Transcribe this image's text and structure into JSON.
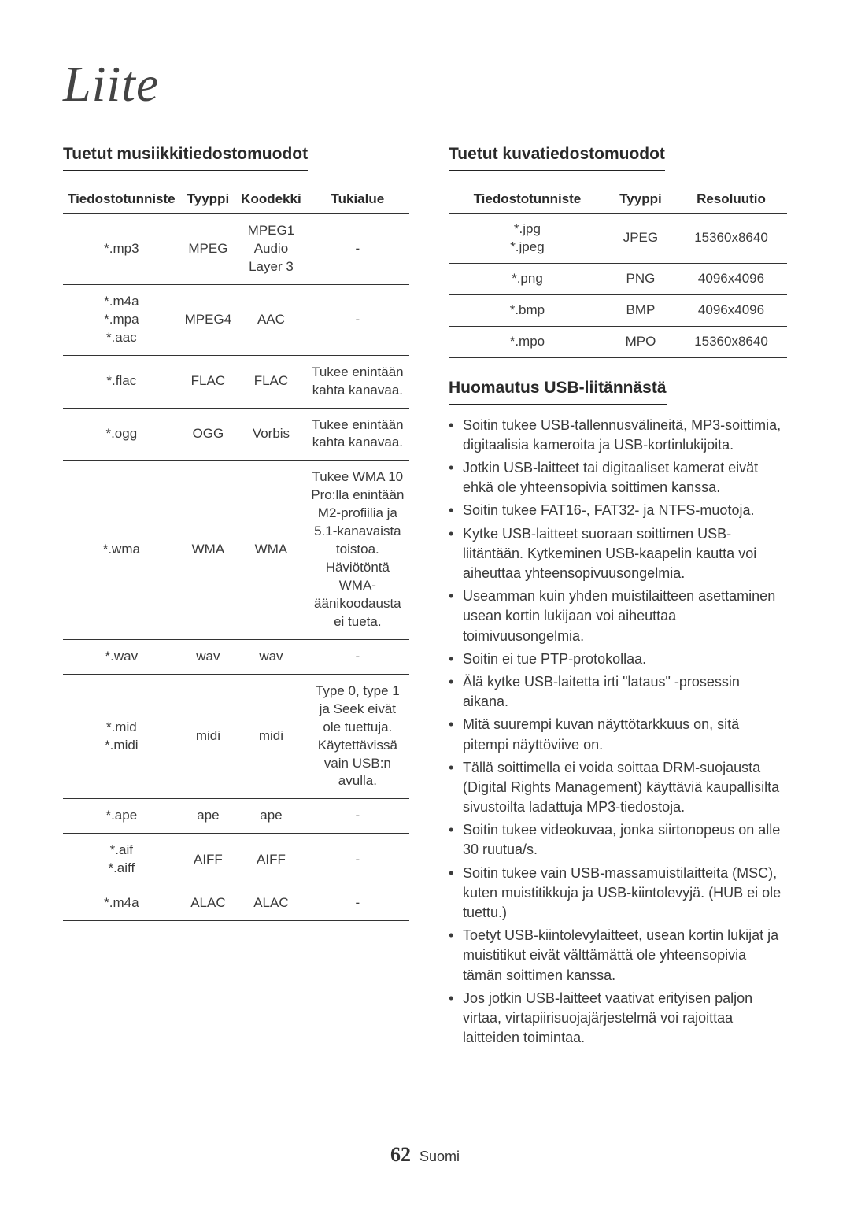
{
  "page_title": "Liite",
  "left": {
    "heading": "Tuetut musiikkitiedostomuodot",
    "columns": [
      "Tiedostotunniste",
      "Tyyppi",
      "Koodekki",
      "Tukialue"
    ],
    "rows": [
      [
        "*.mp3",
        "MPEG",
        "MPEG1 Audio Layer 3",
        "-"
      ],
      [
        "*.m4a\n*.mpa\n*.aac",
        "MPEG4",
        "AAC",
        "-"
      ],
      [
        "*.flac",
        "FLAC",
        "FLAC",
        "Tukee enintään kahta kanavaa."
      ],
      [
        "*.ogg",
        "OGG",
        "Vorbis",
        "Tukee enintään kahta kanavaa."
      ],
      [
        "*.wma",
        "WMA",
        "WMA",
        "Tukee WMA 10 Pro:lla enintään M2-profiilia ja 5.1-kanavaista toistoa. Häviötöntä WMA-äänikoodausta ei tueta."
      ],
      [
        "*.wav",
        "wav",
        "wav",
        "-"
      ],
      [
        "*.mid\n*.midi",
        "midi",
        "midi",
        "Type 0, type 1 ja Seek eivät ole tuettuja. Käytettävissä vain USB:n avulla."
      ],
      [
        "*.ape",
        "ape",
        "ape",
        "-"
      ],
      [
        "*.aif\n*.aiff",
        "AIFF",
        "AIFF",
        "-"
      ],
      [
        "*.m4a",
        "ALAC",
        "ALAC",
        "-"
      ]
    ]
  },
  "right": {
    "heading": "Tuetut kuvatiedostomuodot",
    "columns": [
      "Tiedostotunniste",
      "Tyyppi",
      "Resoluutio"
    ],
    "rows": [
      [
        "*.jpg\n*.jpeg",
        "JPEG",
        "15360x8640"
      ],
      [
        "*.png",
        "PNG",
        "4096x4096"
      ],
      [
        "*.bmp",
        "BMP",
        "4096x4096"
      ],
      [
        "*.mpo",
        "MPO",
        "15360x8640"
      ]
    ],
    "subheading": "Huomautus USB-liitännästä",
    "notes": [
      "Soitin tukee USB-tallennusvälineitä, MP3-soittimia, digitaalisia kameroita ja USB-kortinlukijoita.",
      "Jotkin USB-laitteet tai digitaaliset kamerat eivät ehkä ole yhteensopivia soittimen kanssa.",
      "Soitin tukee FAT16-, FAT32- ja NTFS-muotoja.",
      "Kytke USB-laitteet suoraan soittimen USB-liitäntään. Kytkeminen USB-kaapelin kautta voi aiheuttaa yhteensopivuusongelmia.",
      "Useamman kuin yhden muistilaitteen asettaminen usean kortin lukijaan voi aiheuttaa toimivuusongelmia.",
      "Soitin ei tue PTP-protokollaa.",
      "Älä kytke USB-laitetta irti \"lataus\" -prosessin aikana.",
      "Mitä suurempi kuvan näyttötarkkuus on, sitä pitempi näyttöviive on.",
      "Tällä soittimella ei voida soittaa DRM-suojausta (Digital Rights Management) käyttäviä kaupallisilta sivustoilta ladattuja MP3-tiedostoja.",
      "Soitin tukee videokuvaa, jonka siirtonopeus on alle 30 ruutua/s.",
      "Soitin tukee vain USB-massamuistilaitteita (MSC), kuten muistitikkuja ja USB-kiintolevyjä. (HUB ei ole tuettu.)",
      "Toetyt USB-kiintolevylaitteet, usean kortin lukijat ja muistitikut eivät välttämättä ole yhteensopivia tämän soittimen kanssa.",
      "Jos jotkin USB-laitteet vaativat erityisen paljon virtaa, virtapiirisuojajärjestelmä voi rajoittaa laitteiden toimintaa."
    ]
  },
  "footer": {
    "page_number": "62",
    "lang": "Suomi"
  }
}
